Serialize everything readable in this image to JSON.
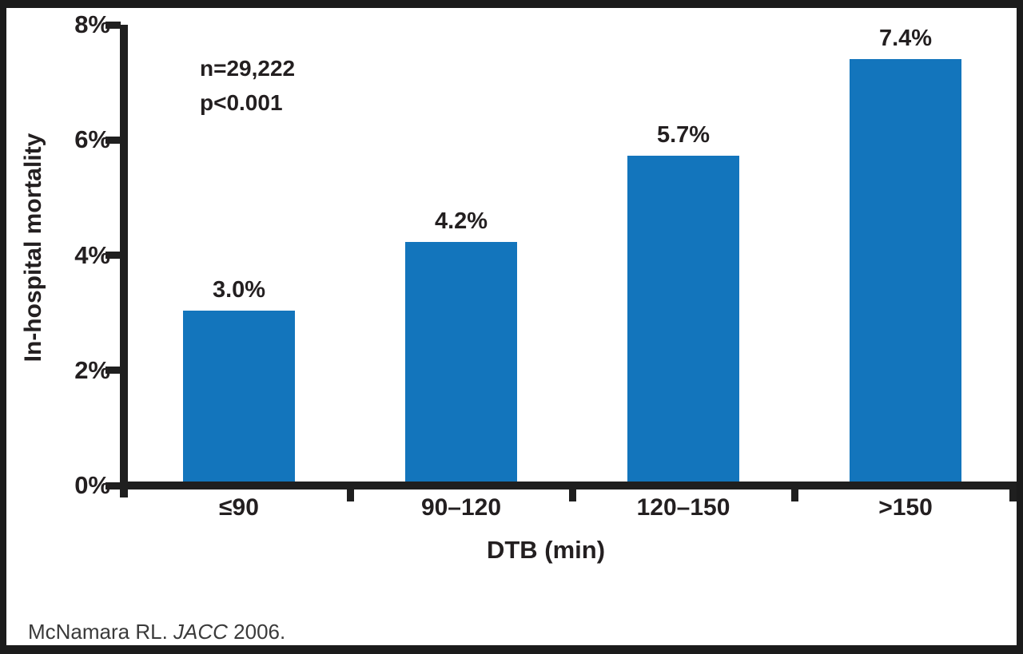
{
  "chart_data": {
    "type": "bar",
    "title": "",
    "categories": [
      "≤90",
      "90–120",
      "120–150",
      ">150"
    ],
    "values": [
      3.0,
      4.2,
      5.7,
      7.4
    ],
    "value_labels": [
      "3.0%",
      "4.2%",
      "5.7%",
      "7.4%"
    ],
    "xlabel": "DTB (min)",
    "ylabel": "In-hospital mortality",
    "ylim": [
      0,
      8
    ],
    "y_ticks": [
      {
        "value": 8,
        "label": "8%"
      },
      {
        "value": 6,
        "label": "6%"
      },
      {
        "value": 4,
        "label": "4%"
      },
      {
        "value": 2,
        "label": "2%"
      },
      {
        "value": 0,
        "label": "0%"
      }
    ],
    "grid": false,
    "legend": "none",
    "annotations": {
      "n": "n=29,222",
      "p": "p<0.001"
    }
  },
  "citation": {
    "prefix": "McNamara RL. ",
    "journal": "JACC",
    "suffix": " 2006."
  },
  "colors": {
    "bar": "#1375BC",
    "text": "#231F20",
    "axis": "#1F1F1F",
    "background": "#FFFFFF"
  }
}
